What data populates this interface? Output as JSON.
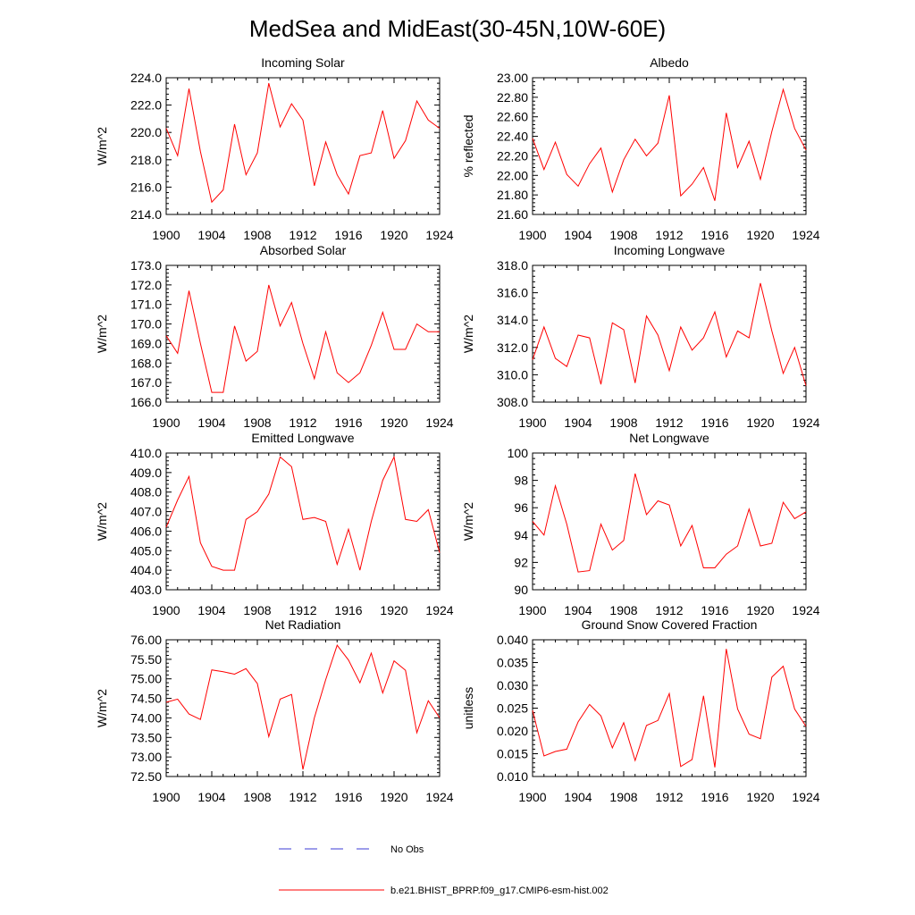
{
  "title": "MedSea and MidEast(30-45N,10W-60E)",
  "colors": {
    "model": "#ff0000",
    "obs": "#3b3bd6",
    "axis": "#000000"
  },
  "legend": {
    "obs_label": "No Obs",
    "model_label": "b.e21.BHIST_BPRP.f09_g17.CMIP6-esm-hist.002"
  },
  "chart_data": [
    {
      "type": "line",
      "title": "Incoming Solar",
      "ylabel": "W/m^2",
      "x": [
        1900,
        1901,
        1902,
        1903,
        1904,
        1905,
        1906,
        1907,
        1908,
        1909,
        1910,
        1911,
        1912,
        1913,
        1914,
        1915,
        1916,
        1917,
        1918,
        1919,
        1920,
        1921,
        1922,
        1923,
        1924
      ],
      "series": [
        {
          "name": "b.e21.BHIST_BPRP.f09_g17.CMIP6-esm-hist.002",
          "values": [
            220.3,
            218.3,
            223.2,
            218.6,
            214.9,
            215.8,
            220.6,
            216.9,
            218.5,
            223.6,
            220.4,
            222.1,
            220.9,
            216.1,
            219.3,
            216.9,
            215.5,
            218.3,
            218.5,
            221.6,
            218.1,
            219.4,
            222.3,
            220.9,
            220.3
          ]
        }
      ],
      "xlim": [
        1900,
        1924
      ],
      "ylim": [
        214.0,
        224.0
      ],
      "xticks": [
        1900,
        1904,
        1908,
        1912,
        1916,
        1920,
        1924
      ],
      "yticks": [
        214.0,
        216.0,
        218.0,
        220.0,
        222.0,
        224.0
      ],
      "ytick_labels": [
        "214.0",
        "216.0",
        "218.0",
        "220.0",
        "222.0",
        "224.0"
      ]
    },
    {
      "type": "line",
      "title": "Albedo",
      "ylabel": "% reflected",
      "x": [
        1900,
        1901,
        1902,
        1903,
        1904,
        1905,
        1906,
        1907,
        1908,
        1909,
        1910,
        1911,
        1912,
        1913,
        1914,
        1915,
        1916,
        1917,
        1918,
        1919,
        1920,
        1921,
        1922,
        1923,
        1924
      ],
      "series": [
        {
          "name": "b.e21.BHIST_BPRP.f09_g17.CMIP6-esm-hist.002",
          "values": [
            22.38,
            22.06,
            22.34,
            22.01,
            21.89,
            22.12,
            22.28,
            21.83,
            22.16,
            22.37,
            22.2,
            22.33,
            22.82,
            21.79,
            21.91,
            22.08,
            21.74,
            22.64,
            22.08,
            22.35,
            21.96,
            22.45,
            22.88,
            22.48,
            22.26
          ]
        }
      ],
      "xlim": [
        1900,
        1924
      ],
      "ylim": [
        21.6,
        23.0
      ],
      "xticks": [
        1900,
        1904,
        1908,
        1912,
        1916,
        1920,
        1924
      ],
      "yticks": [
        21.6,
        21.8,
        22.0,
        22.2,
        22.4,
        22.6,
        22.8,
        23.0
      ],
      "ytick_labels": [
        "21.60",
        "21.80",
        "22.00",
        "22.20",
        "22.40",
        "22.60",
        "22.80",
        "23.00"
      ]
    },
    {
      "type": "line",
      "title": "Absorbed Solar",
      "ylabel": "W/m^2",
      "x": [
        1900,
        1901,
        1902,
        1903,
        1904,
        1905,
        1906,
        1907,
        1908,
        1909,
        1910,
        1911,
        1912,
        1913,
        1914,
        1915,
        1916,
        1917,
        1918,
        1919,
        1920,
        1921,
        1922,
        1923,
        1924
      ],
      "series": [
        {
          "name": "b.e21.BHIST_BPRP.f09_g17.CMIP6-esm-hist.002",
          "values": [
            169.4,
            168.5,
            171.7,
            169.0,
            166.5,
            166.5,
            169.9,
            168.1,
            168.6,
            172.0,
            169.9,
            171.1,
            169.0,
            167.2,
            169.6,
            167.5,
            167.0,
            167.5,
            168.9,
            170.6,
            168.7,
            168.7,
            170.0,
            169.6,
            169.6
          ]
        }
      ],
      "xlim": [
        1900,
        1924
      ],
      "ylim": [
        166.0,
        173.0
      ],
      "xticks": [
        1900,
        1904,
        1908,
        1912,
        1916,
        1920,
        1924
      ],
      "yticks": [
        166.0,
        167.0,
        168.0,
        169.0,
        170.0,
        171.0,
        172.0,
        173.0
      ],
      "ytick_labels": [
        "166.0",
        "167.0",
        "168.0",
        "169.0",
        "170.0",
        "171.0",
        "172.0",
        "173.0"
      ]
    },
    {
      "type": "line",
      "title": "Incoming Longwave",
      "ylabel": "W/m^2",
      "x": [
        1900,
        1901,
        1902,
        1903,
        1904,
        1905,
        1906,
        1907,
        1908,
        1909,
        1910,
        1911,
        1912,
        1913,
        1914,
        1915,
        1916,
        1917,
        1918,
        1919,
        1920,
        1921,
        1922,
        1923,
        1924
      ],
      "series": [
        {
          "name": "b.e21.BHIST_BPRP.f09_g17.CMIP6-esm-hist.002",
          "values": [
            311.1,
            313.5,
            311.2,
            310.6,
            312.9,
            312.7,
            309.3,
            313.8,
            313.3,
            309.4,
            314.3,
            312.9,
            310.3,
            313.5,
            311.8,
            312.7,
            314.6,
            311.3,
            313.2,
            312.7,
            316.7,
            313.2,
            310.1,
            312.0,
            309.2
          ]
        }
      ],
      "xlim": [
        1900,
        1924
      ],
      "ylim": [
        308.0,
        318.0
      ],
      "xticks": [
        1900,
        1904,
        1908,
        1912,
        1916,
        1920,
        1924
      ],
      "yticks": [
        308.0,
        310.0,
        312.0,
        314.0,
        316.0,
        318.0
      ],
      "ytick_labels": [
        "308.0",
        "310.0",
        "312.0",
        "314.0",
        "316.0",
        "318.0"
      ]
    },
    {
      "type": "line",
      "title": "Emitted Longwave",
      "ylabel": "W/m^2",
      "x": [
        1900,
        1901,
        1902,
        1903,
        1904,
        1905,
        1906,
        1907,
        1908,
        1909,
        1910,
        1911,
        1912,
        1913,
        1914,
        1915,
        1916,
        1917,
        1918,
        1919,
        1920,
        1921,
        1922,
        1923,
        1924
      ],
      "series": [
        {
          "name": "b.e21.BHIST_BPRP.f09_g17.CMIP6-esm-hist.002",
          "values": [
            406.2,
            407.6,
            408.8,
            405.4,
            404.2,
            404.0,
            404.0,
            406.6,
            407.0,
            407.9,
            409.8,
            409.3,
            406.6,
            406.7,
            406.5,
            404.3,
            406.1,
            404.0,
            406.5,
            408.6,
            409.8,
            406.6,
            406.5,
            407.1,
            404.9
          ]
        }
      ],
      "xlim": [
        1900,
        1924
      ],
      "ylim": [
        403.0,
        410.0
      ],
      "xticks": [
        1900,
        1904,
        1908,
        1912,
        1916,
        1920,
        1924
      ],
      "yticks": [
        403.0,
        404.0,
        405.0,
        406.0,
        407.0,
        408.0,
        409.0,
        410.0
      ],
      "ytick_labels": [
        "403.0",
        "404.0",
        "405.0",
        "406.0",
        "407.0",
        "408.0",
        "409.0",
        "410.0"
      ]
    },
    {
      "type": "line",
      "title": "Net Longwave",
      "ylabel": "W/m^2",
      "x": [
        1900,
        1901,
        1902,
        1903,
        1904,
        1905,
        1906,
        1907,
        1908,
        1909,
        1910,
        1911,
        1912,
        1913,
        1914,
        1915,
        1916,
        1917,
        1918,
        1919,
        1920,
        1921,
        1922,
        1923,
        1924
      ],
      "series": [
        {
          "name": "b.e21.BHIST_BPRP.f09_g17.CMIP6-esm-hist.002",
          "values": [
            95.0,
            94.0,
            97.6,
            94.8,
            91.3,
            91.4,
            94.8,
            92.9,
            93.6,
            98.5,
            95.5,
            96.5,
            96.2,
            93.2,
            94.7,
            91.6,
            91.6,
            92.6,
            93.2,
            95.9,
            93.2,
            93.4,
            96.4,
            95.2,
            95.7
          ]
        }
      ],
      "xlim": [
        1900,
        1924
      ],
      "ylim": [
        90,
        100
      ],
      "xticks": [
        1900,
        1904,
        1908,
        1912,
        1916,
        1920,
        1924
      ],
      "yticks": [
        90,
        92,
        94,
        96,
        98,
        100
      ],
      "ytick_labels": [
        "90",
        "92",
        "94",
        "96",
        "98",
        "100"
      ]
    },
    {
      "type": "line",
      "title": "Net Radiation",
      "ylabel": "W/m^2",
      "x": [
        1900,
        1901,
        1902,
        1903,
        1904,
        1905,
        1906,
        1907,
        1908,
        1909,
        1910,
        1911,
        1912,
        1913,
        1914,
        1915,
        1916,
        1917,
        1918,
        1919,
        1920,
        1921,
        1922,
        1923,
        1924
      ],
      "series": [
        {
          "name": "b.e21.BHIST_BPRP.f09_g17.CMIP6-esm-hist.002",
          "values": [
            74.4,
            74.48,
            74.1,
            73.96,
            75.23,
            75.18,
            75.12,
            75.26,
            74.88,
            73.52,
            74.48,
            74.6,
            72.68,
            74.0,
            74.98,
            75.86,
            75.48,
            74.9,
            75.66,
            74.64,
            75.46,
            75.22,
            73.62,
            74.44,
            74.0
          ]
        }
      ],
      "xlim": [
        1900,
        1924
      ],
      "ylim": [
        72.5,
        76.0
      ],
      "xticks": [
        1900,
        1904,
        1908,
        1912,
        1916,
        1920,
        1924
      ],
      "yticks": [
        72.5,
        73.0,
        73.5,
        74.0,
        74.5,
        75.0,
        75.5,
        76.0
      ],
      "ytick_labels": [
        "72.50",
        "73.00",
        "73.50",
        "74.00",
        "74.50",
        "75.00",
        "75.50",
        "76.00"
      ]
    },
    {
      "type": "line",
      "title": "Ground Snow Covered Fraction",
      "ylabel": "unitless",
      "x": [
        1900,
        1901,
        1902,
        1903,
        1904,
        1905,
        1906,
        1907,
        1908,
        1909,
        1910,
        1911,
        1912,
        1913,
        1914,
        1915,
        1916,
        1917,
        1918,
        1919,
        1920,
        1921,
        1922,
        1923,
        1924
      ],
      "series": [
        {
          "name": "b.e21.BHIST_BPRP.f09_g17.CMIP6-esm-hist.002",
          "values": [
            0.0245,
            0.0145,
            0.0155,
            0.016,
            0.022,
            0.0258,
            0.0233,
            0.0163,
            0.0218,
            0.0135,
            0.0212,
            0.0223,
            0.0282,
            0.0122,
            0.0137,
            0.0277,
            0.012,
            0.038,
            0.0248,
            0.0193,
            0.0183,
            0.0318,
            0.0342,
            0.0248,
            0.021
          ]
        }
      ],
      "xlim": [
        1900,
        1924
      ],
      "ylim": [
        0.01,
        0.04
      ],
      "xticks": [
        1900,
        1904,
        1908,
        1912,
        1916,
        1920,
        1924
      ],
      "yticks": [
        0.01,
        0.015,
        0.02,
        0.025,
        0.03,
        0.035,
        0.04
      ],
      "ytick_labels": [
        "0.010",
        "0.015",
        "0.020",
        "0.025",
        "0.030",
        "0.035",
        "0.040"
      ]
    }
  ]
}
